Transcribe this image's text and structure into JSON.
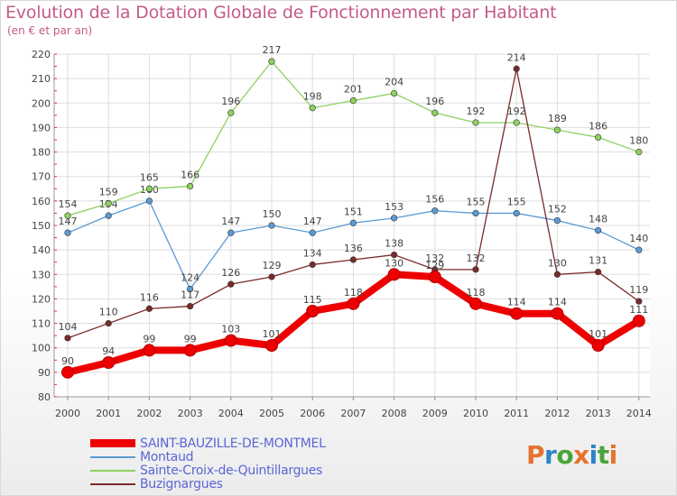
{
  "title": "Evolution de la Dotation Globale de Fonctionnement par Habitant",
  "subtitle": "(en € et par an)",
  "logo": {
    "text": "Proxiti",
    "colors": [
      "#e5732f",
      "#2f83c7",
      "#4aa43a",
      "#e5732f",
      "#2f83c7",
      "#4aa43a",
      "#e5732f"
    ]
  },
  "chart_data": {
    "type": "line",
    "title": "Evolution de la Dotation Globale de Fonctionnement par Habitant",
    "subtitle": "(en € et par an)",
    "x": [
      "2000",
      "2001",
      "2002",
      "2003",
      "2004",
      "2005",
      "2006",
      "2007",
      "2008",
      "2009",
      "2010",
      "2011",
      "2012",
      "2013",
      "2014"
    ],
    "ylim": [
      80,
      220
    ],
    "yticks": [
      80,
      90,
      100,
      110,
      120,
      130,
      140,
      150,
      160,
      170,
      180,
      190,
      200,
      210,
      220
    ],
    "grid": true,
    "legend_position": "bottom",
    "series": [
      {
        "name": "SAINT-BAUZILLE-DE-MONTMEL",
        "color": "#ee0000",
        "emphasis": true,
        "values": [
          90,
          94,
          99,
          99,
          103,
          101,
          115,
          118,
          130,
          129,
          118,
          114,
          114,
          101,
          111
        ]
      },
      {
        "name": "Montaud",
        "color": "#5b9bd5",
        "values": [
          147,
          154,
          160,
          124,
          147,
          150,
          147,
          151,
          153,
          156,
          155,
          155,
          152,
          148,
          140
        ]
      },
      {
        "name": "Sainte-Croix-de-Quintillargues",
        "color": "#8ed160",
        "values": [
          154,
          159,
          165,
          166,
          196,
          217,
          198,
          201,
          204,
          196,
          192,
          192,
          189,
          186,
          180
        ]
      },
      {
        "name": "Buzignargues",
        "color": "#7a2a2a",
        "values": [
          104,
          110,
          116,
          117,
          126,
          129,
          134,
          136,
          138,
          132,
          132,
          214,
          130,
          131,
          119
        ]
      }
    ]
  }
}
